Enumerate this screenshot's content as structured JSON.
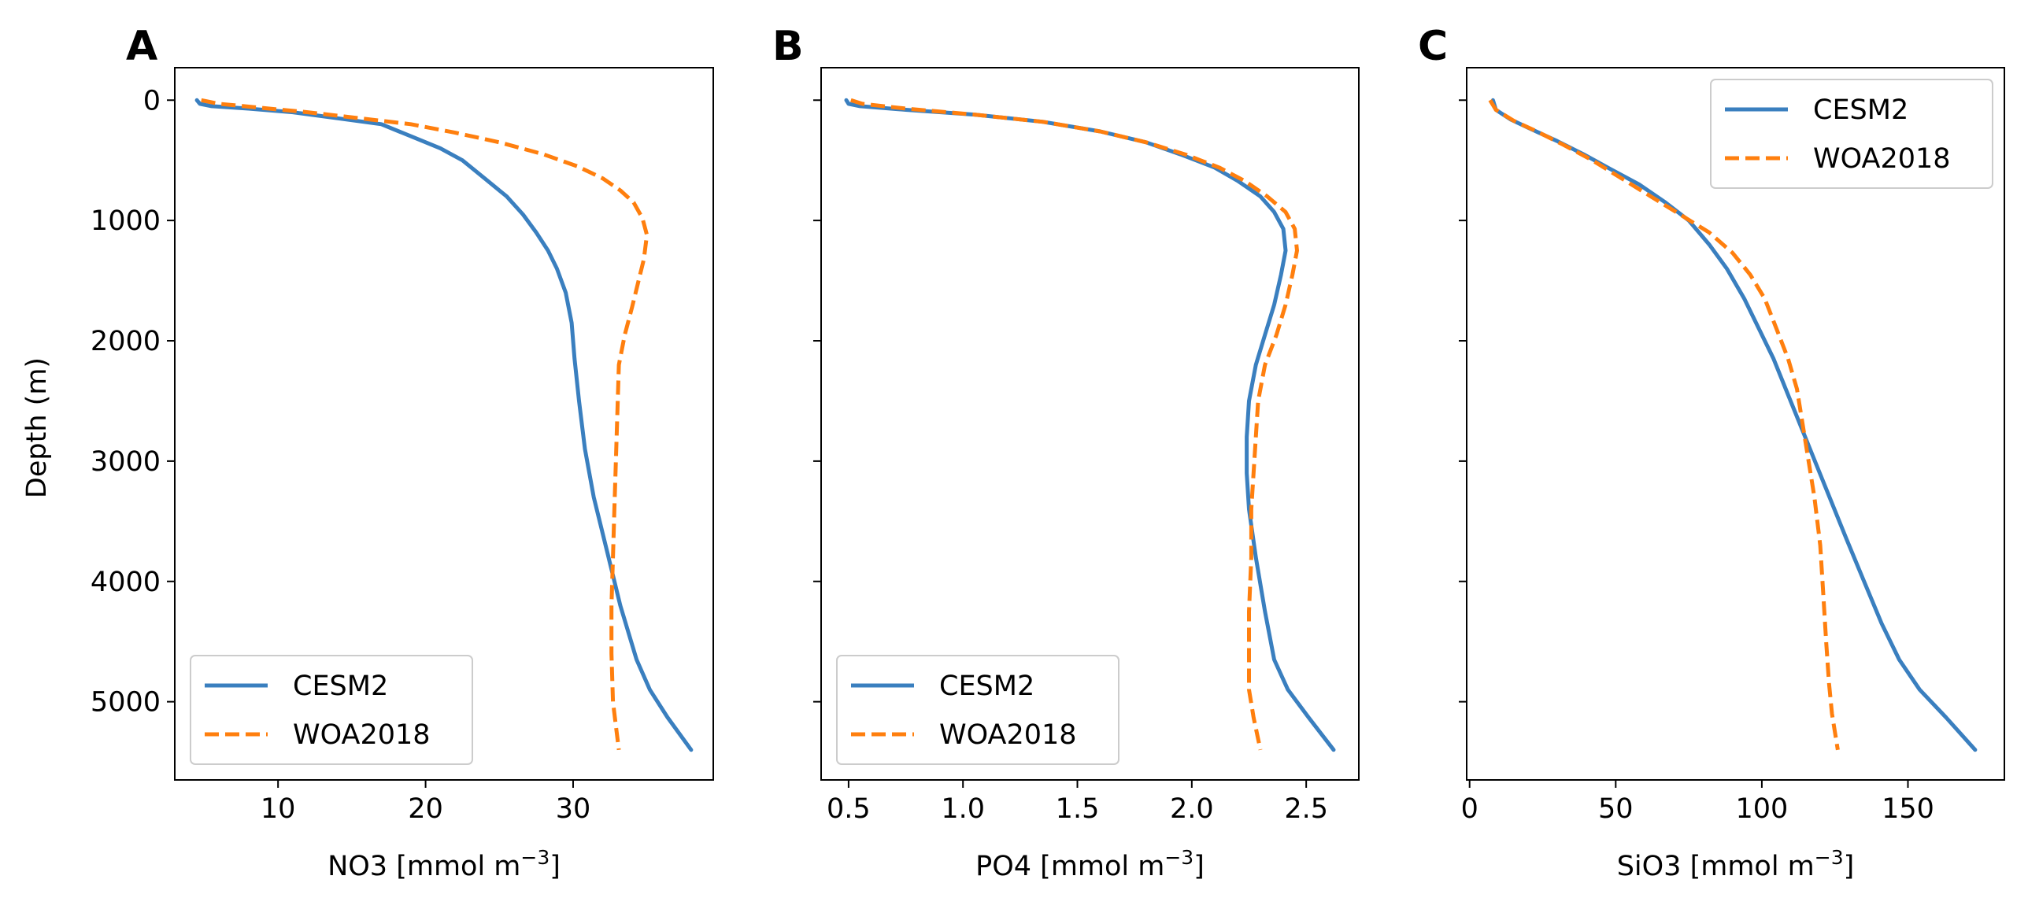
{
  "chart_data": [
    {
      "type": "line",
      "panel_label": "A",
      "xlabel": "NO3 [mmol m",
      "xlabel_exp": "−3",
      "xlabel_close": "]",
      "ylabel": "Depth (m)",
      "xlim": [
        3,
        39.5
      ],
      "ylim": [
        5650,
        -270
      ],
      "y_inverted": true,
      "xticks": [
        10,
        20,
        30
      ],
      "yticks": [
        0,
        1000,
        2000,
        3000,
        4000,
        5000
      ],
      "legend": "lower-left",
      "series": [
        {
          "name": "CESM2",
          "color": "#3a7fbf",
          "style": "solid",
          "points": [
            [
              4.5,
              0
            ],
            [
              4.7,
              30
            ],
            [
              5.5,
              50
            ],
            [
              8,
              70
            ],
            [
              11,
              100
            ],
            [
              14,
              150
            ],
            [
              17,
              200
            ],
            [
              19,
              300
            ],
            [
              21,
              400
            ],
            [
              22.5,
              500
            ],
            [
              24,
              650
            ],
            [
              25.5,
              800
            ],
            [
              26.6,
              950
            ],
            [
              27.5,
              1100
            ],
            [
              28.3,
              1250
            ],
            [
              28.9,
              1400
            ],
            [
              29.5,
              1600
            ],
            [
              29.9,
              1850
            ],
            [
              30.1,
              2150
            ],
            [
              30.4,
              2500
            ],
            [
              30.8,
              2900
            ],
            [
              31.4,
              3300
            ],
            [
              32.3,
              3750
            ],
            [
              33.2,
              4200
            ],
            [
              34.3,
              4650
            ],
            [
              35.2,
              4900
            ],
            [
              36.4,
              5130
            ],
            [
              38,
              5400
            ]
          ]
        },
        {
          "name": "WOA2018",
          "color": "#ff7f0e",
          "style": "dashed",
          "points": [
            [
              4.8,
              0
            ],
            [
              6,
              30
            ],
            [
              8.5,
              60
            ],
            [
              12,
              100
            ],
            [
              15.5,
              150
            ],
            [
              19,
              200
            ],
            [
              22,
              270
            ],
            [
              25,
              350
            ],
            [
              28,
              450
            ],
            [
              30.3,
              550
            ],
            [
              32,
              650
            ],
            [
              33.2,
              750
            ],
            [
              34.1,
              850
            ],
            [
              34.7,
              980
            ],
            [
              35,
              1120
            ],
            [
              34.8,
              1320
            ],
            [
              34.4,
              1520
            ],
            [
              34.0,
              1720
            ],
            [
              33.5,
              1950
            ],
            [
              33.1,
              2200
            ],
            [
              33.0,
              2600
            ],
            [
              32.9,
              3000
            ],
            [
              32.8,
              3400
            ],
            [
              32.7,
              3800
            ],
            [
              32.6,
              4200
            ],
            [
              32.6,
              4600
            ],
            [
              32.7,
              5000
            ],
            [
              32.9,
              5200
            ],
            [
              33.1,
              5400
            ]
          ]
        }
      ]
    },
    {
      "type": "line",
      "panel_label": "B",
      "xlabel": "PO4 [mmol m",
      "xlabel_exp": "−3",
      "xlabel_close": "]",
      "ylabel": "",
      "xlim": [
        0.38,
        2.73
      ],
      "ylim": [
        5650,
        -270
      ],
      "y_inverted": true,
      "xticks": [
        0.5,
        1.0,
        1.5,
        2.0,
        2.5
      ],
      "xtick_labels": [
        "0.5",
        "1.0",
        "1.5",
        "2.0",
        "2.5"
      ],
      "yticks": [
        0,
        1000,
        2000,
        3000,
        4000,
        5000
      ],
      "legend": "lower-left",
      "series": [
        {
          "name": "CESM2",
          "color": "#3a7fbf",
          "style": "solid",
          "points": [
            [
              0.49,
              0
            ],
            [
              0.5,
              30
            ],
            [
              0.55,
              50
            ],
            [
              0.75,
              80
            ],
            [
              1.05,
              120
            ],
            [
              1.35,
              180
            ],
            [
              1.6,
              260
            ],
            [
              1.8,
              350
            ],
            [
              1.95,
              450
            ],
            [
              2.1,
              560
            ],
            [
              2.2,
              670
            ],
            [
              2.3,
              800
            ],
            [
              2.36,
              930
            ],
            [
              2.4,
              1070
            ],
            [
              2.41,
              1250
            ],
            [
              2.39,
              1450
            ],
            [
              2.36,
              1700
            ],
            [
              2.32,
              1950
            ],
            [
              2.28,
              2200
            ],
            [
              2.25,
              2500
            ],
            [
              2.24,
              2800
            ],
            [
              2.24,
              3100
            ],
            [
              2.25,
              3400
            ],
            [
              2.28,
              3800
            ],
            [
              2.32,
              4250
            ],
            [
              2.36,
              4650
            ],
            [
              2.42,
              4900
            ],
            [
              2.51,
              5130
            ],
            [
              2.62,
              5400
            ]
          ]
        },
        {
          "name": "WOA2018",
          "color": "#ff7f0e",
          "style": "dashed",
          "points": [
            [
              0.51,
              0
            ],
            [
              0.56,
              30
            ],
            [
              0.75,
              70
            ],
            [
              1.05,
              120
            ],
            [
              1.35,
              180
            ],
            [
              1.6,
              260
            ],
            [
              1.8,
              350
            ],
            [
              1.97,
              450
            ],
            [
              2.12,
              560
            ],
            [
              2.23,
              670
            ],
            [
              2.33,
              800
            ],
            [
              2.41,
              930
            ],
            [
              2.45,
              1070
            ],
            [
              2.46,
              1250
            ],
            [
              2.44,
              1450
            ],
            [
              2.41,
              1700
            ],
            [
              2.37,
              1950
            ],
            [
              2.32,
              2200
            ],
            [
              2.29,
              2500
            ],
            [
              2.28,
              2800
            ],
            [
              2.27,
              3100
            ],
            [
              2.26,
              3400
            ],
            [
              2.26,
              3800
            ],
            [
              2.25,
              4250
            ],
            [
              2.25,
              4650
            ],
            [
              2.25,
              4900
            ],
            [
              2.27,
              5130
            ],
            [
              2.3,
              5400
            ]
          ]
        }
      ]
    },
    {
      "type": "line",
      "panel_label": "C",
      "xlabel": "SiO3 [mmol m",
      "xlabel_exp": "−3",
      "xlabel_close": "]",
      "ylabel": "",
      "xlim": [
        -1,
        183
      ],
      "ylim": [
        5650,
        -270
      ],
      "y_inverted": true,
      "xticks": [
        0,
        50,
        100,
        150
      ],
      "yticks": [
        0,
        1000,
        2000,
        3000,
        4000,
        5000
      ],
      "legend": "upper-right",
      "series": [
        {
          "name": "CESM2",
          "color": "#3a7fbf",
          "style": "solid",
          "points": [
            [
              8,
              0
            ],
            [
              9,
              80
            ],
            [
              14,
              160
            ],
            [
              21,
              240
            ],
            [
              30,
              340
            ],
            [
              39,
              450
            ],
            [
              48,
              570
            ],
            [
              58,
              700
            ],
            [
              67,
              850
            ],
            [
              75,
              1000
            ],
            [
              82,
              1200
            ],
            [
              88,
              1400
            ],
            [
              94,
              1650
            ],
            [
              99,
              1900
            ],
            [
              104,
              2150
            ],
            [
              109,
              2450
            ],
            [
              114,
              2750
            ],
            [
              119,
              3050
            ],
            [
              124,
              3350
            ],
            [
              129,
              3650
            ],
            [
              135,
              4000
            ],
            [
              141,
              4350
            ],
            [
              147,
              4650
            ],
            [
              154,
              4900
            ],
            [
              163,
              5130
            ],
            [
              173,
              5400
            ]
          ]
        },
        {
          "name": "WOA2018",
          "color": "#ff7f0e",
          "style": "dashed",
          "points": [
            [
              7,
              0
            ],
            [
              9,
              80
            ],
            [
              15,
              170
            ],
            [
              23,
              260
            ],
            [
              32,
              370
            ],
            [
              42,
              500
            ],
            [
              52,
              650
            ],
            [
              62,
              800
            ],
            [
              72,
              950
            ],
            [
              82,
              1100
            ],
            [
              90,
              1270
            ],
            [
              96,
              1450
            ],
            [
              101,
              1650
            ],
            [
              105,
              1900
            ],
            [
              109,
              2150
            ],
            [
              112,
              2400
            ],
            [
              114,
              2700
            ],
            [
              116,
              3000
            ],
            [
              118,
              3300
            ],
            [
              120,
              3700
            ],
            [
              121,
              4100
            ],
            [
              122,
              4500
            ],
            [
              123,
              4850
            ],
            [
              124,
              5100
            ],
            [
              126,
              5400
            ]
          ]
        }
      ]
    }
  ]
}
